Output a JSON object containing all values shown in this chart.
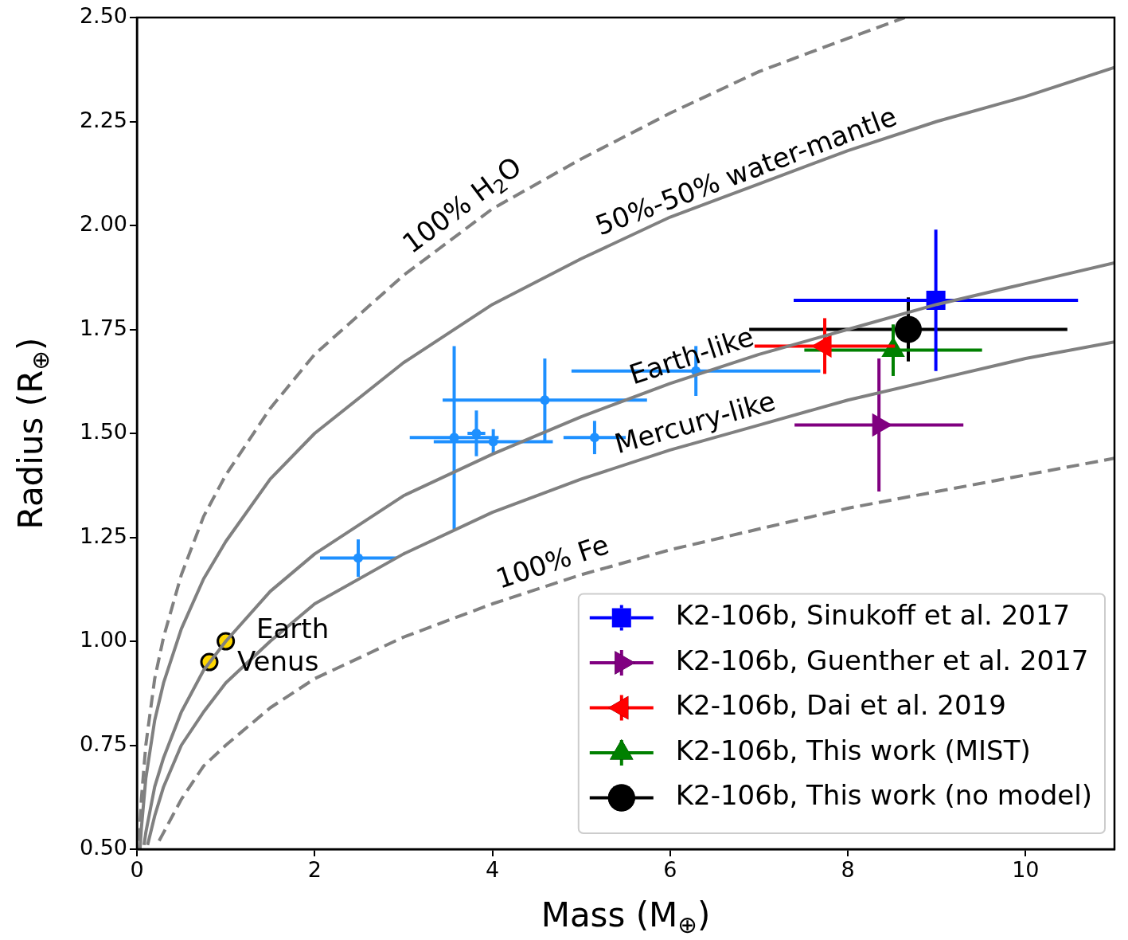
{
  "chart_data": {
    "type": "scatter",
    "xlabel": "Mass (M$_{⊕}$)",
    "ylabel": "Radius (R$_{⊕}$)",
    "xlim": [
      0,
      11
    ],
    "ylim": [
      0.5,
      2.5
    ],
    "xticks": [
      0,
      2,
      4,
      6,
      8,
      10
    ],
    "yticks": [
      {
        "value": 0.5,
        "label": "0.50"
      },
      {
        "value": 0.75,
        "label": "0.75"
      },
      {
        "value": 1,
        "label": "1.00"
      },
      {
        "value": 1.25,
        "label": "1.25"
      },
      {
        "value": 1.5,
        "label": "1.50"
      },
      {
        "value": 1.75,
        "label": "1.75"
      },
      {
        "value": 2,
        "label": "2.00"
      },
      {
        "value": 2.25,
        "label": "2.25"
      },
      {
        "value": 2.5,
        "label": "2.50"
      }
    ],
    "legend": "bottom right",
    "series": [
      {
        "type": "line",
        "name": "100% H$_{2}$O",
        "color": "#808080",
        "line_style": "dashed",
        "x": [
          0.025,
          0.05,
          0.1,
          0.2,
          0.3,
          0.5,
          0.75,
          1,
          1.5,
          2,
          3,
          4,
          5,
          6,
          7,
          8,
          8.64
        ],
        "values": [
          0.52,
          0.62,
          0.75,
          0.91,
          1.01,
          1.16,
          1.3,
          1.4,
          1.56,
          1.69,
          1.88,
          2.04,
          2.16,
          2.27,
          2.37,
          2.45,
          2.5
        ]
      },
      {
        "type": "line",
        "name": "50%-50% water-mantle",
        "color": "#808080",
        "line_style": "solid",
        "x": [
          0.035,
          0.05,
          0.1,
          0.2,
          0.3,
          0.5,
          0.75,
          1,
          1.5,
          2,
          3,
          4,
          5,
          6,
          7,
          8,
          9,
          10,
          11
        ],
        "values": [
          0.5,
          0.55,
          0.67,
          0.81,
          0.9,
          1.03,
          1.15,
          1.24,
          1.39,
          1.5,
          1.67,
          1.81,
          1.92,
          2.02,
          2.1,
          2.18,
          2.25,
          2.31,
          2.38
        ]
      },
      {
        "type": "line",
        "name": "Earth-like",
        "color": "#808080",
        "line_style": "solid",
        "x": [
          0.08,
          0.1,
          0.2,
          0.3,
          0.5,
          0.75,
          1,
          1.5,
          2,
          3,
          4,
          5,
          6,
          7,
          8,
          9,
          10,
          11
        ],
        "values": [
          0.51,
          0.54,
          0.65,
          0.72,
          0.83,
          0.93,
          1,
          1.12,
          1.21,
          1.35,
          1.45,
          1.54,
          1.62,
          1.69,
          1.75,
          1.81,
          1.86,
          1.91
        ]
      },
      {
        "type": "line",
        "name": "Mercury-like",
        "color": "#808080",
        "line_style": "solid",
        "x": [
          0.12,
          0.2,
          0.3,
          0.5,
          0.75,
          1,
          1.5,
          2,
          3,
          4,
          5,
          6,
          7,
          8,
          9,
          10,
          11
        ],
        "values": [
          0.51,
          0.58,
          0.65,
          0.75,
          0.83,
          0.9,
          1,
          1.09,
          1.21,
          1.31,
          1.39,
          1.46,
          1.52,
          1.58,
          1.63,
          1.68,
          1.72
        ]
      },
      {
        "type": "line",
        "name": "100% Fe",
        "color": "#808080",
        "line_style": "dashed",
        "x": [
          0.25,
          0.3,
          0.5,
          0.75,
          1,
          1.5,
          2,
          3,
          4,
          5,
          6,
          7,
          8,
          9,
          10,
          11
        ],
        "values": [
          0.52,
          0.54,
          0.62,
          0.7,
          0.75,
          0.84,
          0.91,
          1.01,
          1.09,
          1.16,
          1.22,
          1.27,
          1.32,
          1.36,
          1.4,
          1.44
        ]
      },
      {
        "color": "#1e90ff",
        "marker": "circle",
        "x": [
          2.49,
          3.57,
          3.82,
          4.01,
          4.59,
          5.15,
          6.29
        ],
        "values": [
          1.2,
          1.49,
          1.5,
          1.48,
          1.58,
          1.49,
          1.65
        ],
        "errors": [
          0.045,
          0.22,
          0.055,
          0.03,
          0.1,
          0.04,
          0.06
        ],
        "xerrors": [
          0.43,
          0.5,
          0.1,
          0.67,
          1.15,
          0.35,
          1.4
        ]
      },
      {
        "color": "#ffd700",
        "marker": "circle",
        "x": [
          1,
          0.815
        ],
        "values": [
          1,
          0.95
        ]
      },
      {
        "name": "K2-106b, Sinukoff et al. 2017",
        "color": "#0000ff",
        "marker": "square",
        "x": [
          8.99
        ],
        "values": [
          1.82
        ],
        "errors": [
          0.17
        ],
        "xerrors": [
          1.6
        ]
      },
      {
        "name": "K2-106b, Guenther et al. 2017",
        "color": "#800080",
        "marker": "triangle-right",
        "x": [
          8.35
        ],
        "values": [
          1.52
        ],
        "errors": [
          0.16
        ],
        "xerrors": [
          0.95
        ]
      },
      {
        "name": "K2-106b, Dai et al. 2019",
        "color": "#ff0000",
        "marker": "triangle-left",
        "x": [
          7.74
        ],
        "values": [
          1.71
        ],
        "errors": [
          0.067
        ],
        "xerrors": [
          0.79
        ]
      },
      {
        "name": "K2-106b, This work (MIST)",
        "color": "#008000",
        "marker": "triangle",
        "x": [
          8.51
        ],
        "values": [
          1.7
        ],
        "errors": [
          0.062
        ],
        "xerrors": [
          1.0
        ]
      },
      {
        "name": "K2-106b, This work (no model)",
        "color": "#000000",
        "marker": "circle",
        "x": [
          8.68
        ],
        "values": [
          1.75
        ],
        "errors": [
          0.077
        ],
        "xerrors": [
          1.79
        ]
      }
    ],
    "annotations": [
      "Earth",
      "Venus"
    ]
  }
}
